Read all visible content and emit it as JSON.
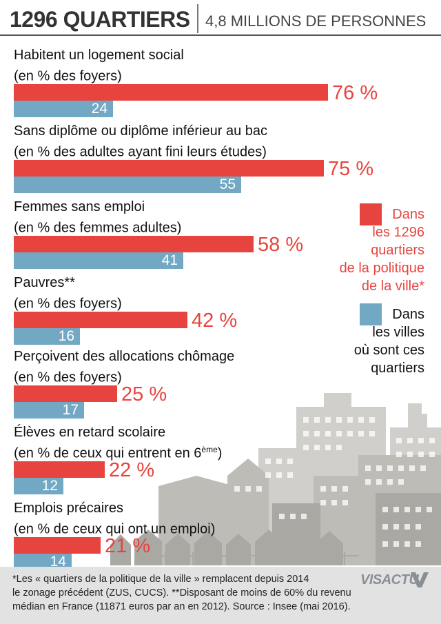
{
  "header": {
    "left": "1296 QUARTIERS",
    "right": "4,8 MILLIONS DE PERSONNES"
  },
  "chart_data": {
    "type": "bar",
    "orientation": "horizontal",
    "categories": [
      {
        "line1": "Habitent un logement social",
        "line2": "(en % des foyers)",
        "sup": "",
        "line2_after": ""
      },
      {
        "line1": "Sans diplôme ou diplôme inférieur au bac",
        "line2": "(en % des adultes ayant fini leurs études)",
        "sup": "",
        "line2_after": ""
      },
      {
        "line1": "Femmes sans emploi",
        "line2": "(en % des femmes adultes)",
        "sup": "",
        "line2_after": ""
      },
      {
        "line1": "Pauvres**",
        "line2": "(en % des foyers)",
        "sup": "",
        "line2_after": ""
      },
      {
        "line1": "Perçoivent des allocations chômage",
        "line2": "(en % des foyers)",
        "sup": "",
        "line2_after": ""
      },
      {
        "line1": "Élèves en retard scolaire",
        "line2": "(en % de ceux qui entrent en 6",
        "sup": "ème",
        "line2_after": ")"
      },
      {
        "line1": "Emplois précaires",
        "line2": "(en % de ceux qui ont un emploi)",
        "sup": "",
        "line2_after": ""
      }
    ],
    "series": [
      {
        "values": [
          76,
          75,
          58,
          42,
          25,
          22,
          21
        ],
        "labels": [
          "76 %",
          "75 %",
          "58 %",
          "42 %",
          "25 %",
          "22 %",
          "21 %"
        ],
        "color": "#e8443f"
      },
      {
        "values": [
          24,
          55,
          41,
          16,
          17,
          12,
          14
        ],
        "labels": [
          "24",
          "55",
          "41",
          "16",
          "17",
          "12",
          "14"
        ],
        "color": "#73a8c4"
      }
    ],
    "xlim": [
      0,
      100
    ],
    "legend_placement": "right"
  },
  "legend": {
    "red": [
      "Dans",
      "les 1296",
      "quartiers",
      "de la politique",
      "de la ville*"
    ],
    "blue": [
      "Dans",
      "les villes",
      "où sont ces",
      "quartiers"
    ]
  },
  "footer": {
    "line1": "*Les « quartiers de la politique de la ville » remplacent depuis 2014",
    "line2": "le zonage précédent (ZUS, CUCS). **Disposant de moins de 60% du revenu",
    "line3": "médian en France (11871 euros par an en 2012). Source : Insee (mai 2016)."
  },
  "logo": {
    "text": "VISACTU"
  }
}
